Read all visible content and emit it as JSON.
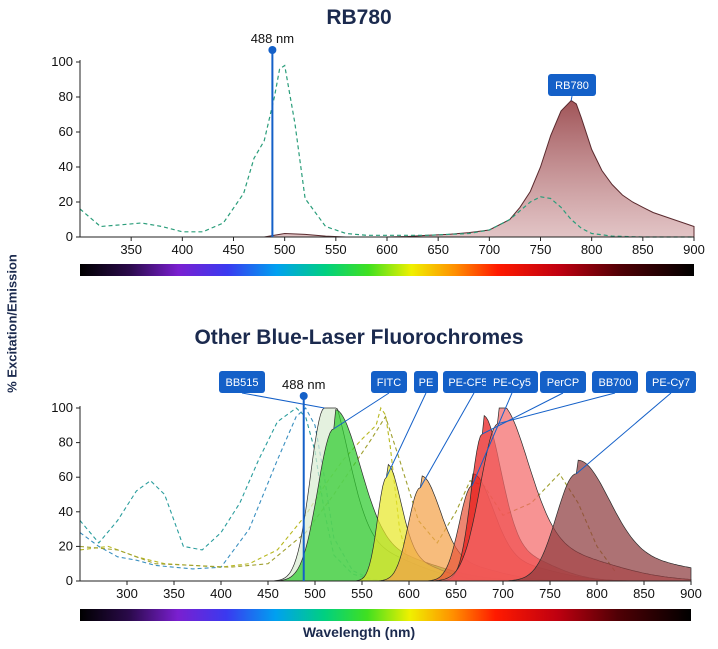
{
  "chart_data": [
    {
      "type": "area",
      "title": "RB780",
      "ylabel": "% Excitation/Emission",
      "xlabel": "",
      "xlim": [
        300,
        900
      ],
      "ylim": [
        0,
        100
      ],
      "xticks": [
        350,
        400,
        450,
        500,
        550,
        600,
        650,
        700,
        750,
        800,
        850,
        900
      ],
      "yticks": [
        0,
        20,
        40,
        60,
        80,
        100
      ],
      "laser": {
        "wavelength": 488,
        "label": "488 nm"
      },
      "series": [
        {
          "name": "RB780",
          "kind": "emission",
          "color": "#9b4b4f",
          "peak": 780,
          "x": [
            480,
            500,
            520,
            540,
            560,
            580,
            600,
            620,
            640,
            660,
            680,
            700,
            720,
            730,
            740,
            750,
            760,
            770,
            780,
            785,
            790,
            800,
            810,
            820,
            830,
            840,
            850,
            860,
            870,
            880,
            890,
            900
          ],
          "y": [
            0,
            2,
            1.5,
            0.5,
            0,
            0,
            0,
            0.3,
            1,
            1.5,
            2.5,
            4,
            10,
            17,
            26,
            40,
            58,
            72,
            78,
            76,
            68,
            50,
            38,
            30,
            24,
            20,
            17,
            14,
            12,
            10,
            8,
            6
          ]
        },
        {
          "name": "RB780 excitation",
          "kind": "excitation",
          "color": "#2a9d7a",
          "x": [
            300,
            320,
            340,
            360,
            380,
            400,
            420,
            440,
            460,
            470,
            480,
            490,
            495,
            500,
            510,
            520,
            540,
            560,
            580,
            600,
            620,
            640,
            660,
            680,
            700,
            720,
            740,
            750,
            760,
            770,
            780,
            790,
            800,
            820,
            850,
            880,
            900
          ],
          "y": [
            16,
            6,
            7,
            8,
            6,
            3,
            3,
            8,
            25,
            45,
            55,
            80,
            96,
            98,
            65,
            22,
            6,
            2,
            1,
            1,
            1,
            1,
            1.5,
            2,
            4,
            10,
            20,
            23,
            22,
            17,
            10,
            5,
            2,
            0.5,
            0,
            0,
            0
          ]
        }
      ]
    },
    {
      "type": "area",
      "title": "Other Blue-Laser Fluorochromes",
      "ylabel": "% Excitation/Emission",
      "xlabel": "Wavelength (nm)",
      "xlim": [
        250,
        900
      ],
      "ylim": [
        0,
        100
      ],
      "xticks": [
        300,
        350,
        400,
        450,
        500,
        550,
        600,
        650,
        700,
        750,
        800,
        850,
        900
      ],
      "yticks": [
        0,
        20,
        40,
        60,
        80,
        100
      ],
      "laser": {
        "wavelength": 488,
        "label": "488 nm"
      },
      "series": [
        {
          "name": "BB515",
          "color": "#d9ecd2",
          "peak": 510,
          "fwhm": 35,
          "height": 100
        },
        {
          "name": "FITC",
          "color": "#2ecc2e",
          "peak": 520,
          "fwhm": 40,
          "height": 88
        },
        {
          "name": "PE",
          "color": "#e8e82a",
          "peak": 576,
          "fwhm": 22,
          "height": 60
        },
        {
          "name": "PE-CF594",
          "color": "#f4a24a",
          "peak": 612,
          "fwhm": 30,
          "height": 54
        },
        {
          "name": "PE-Cy5",
          "color": "#e8563a",
          "peak": 667,
          "fwhm": 32,
          "height": 55
        },
        {
          "name": "PerCP",
          "color": "#e81818",
          "peak": 678,
          "fwhm": 28,
          "height": 85
        },
        {
          "name": "BB700",
          "color": "#f46a6a",
          "peak": 695,
          "fwhm": 45,
          "height": 91
        },
        {
          "name": "PE-Cy7",
          "color": "#8e3b3f",
          "peak": 778,
          "fwhm": 50,
          "height": 62
        }
      ],
      "excitation_curves": [
        {
          "color": "#2a9d9d",
          "x": [
            250,
            270,
            290,
            310,
            325,
            340,
            360,
            380,
            400,
            420,
            440,
            460,
            480,
            490,
            500,
            510,
            520,
            540,
            560,
            580,
            600
          ],
          "y": [
            35,
            22,
            35,
            52,
            58,
            50,
            20,
            18,
            28,
            45,
            70,
            92,
            100,
            95,
            75,
            40,
            15,
            4,
            1,
            0,
            0
          ]
        },
        {
          "color": "#3a8fc0",
          "x": [
            250,
            270,
            290,
            310,
            330,
            350,
            370,
            400,
            430,
            460,
            480,
            490,
            500,
            510,
            520,
            540,
            560,
            580
          ],
          "y": [
            28,
            20,
            14,
            12,
            9,
            8,
            7,
            8,
            30,
            70,
            95,
            100,
            90,
            60,
            25,
            6,
            1,
            0
          ]
        },
        {
          "color": "#b8b820",
          "x": [
            250,
            280,
            310,
            340,
            370,
            400,
            430,
            460,
            490,
            510,
            530,
            550,
            565,
            570,
            575,
            580,
            590,
            600,
            620,
            640
          ],
          "y": [
            18,
            20,
            14,
            10,
            9,
            8,
            10,
            18,
            38,
            55,
            70,
            82,
            90,
            100,
            96,
            78,
            30,
            10,
            3,
            0
          ]
        },
        {
          "color": "#a0a030",
          "x": [
            250,
            290,
            330,
            370,
            410,
            450,
            490,
            520,
            545,
            560,
            575,
            590,
            610,
            630,
            650,
            665,
            680,
            700,
            730,
            760,
            780,
            800,
            820
          ],
          "y": [
            20,
            18,
            10,
            9,
            8,
            10,
            28,
            50,
            70,
            82,
            95,
            70,
            35,
            22,
            40,
            58,
            55,
            38,
            45,
            62,
            45,
            20,
            5
          ]
        }
      ]
    }
  ]
}
